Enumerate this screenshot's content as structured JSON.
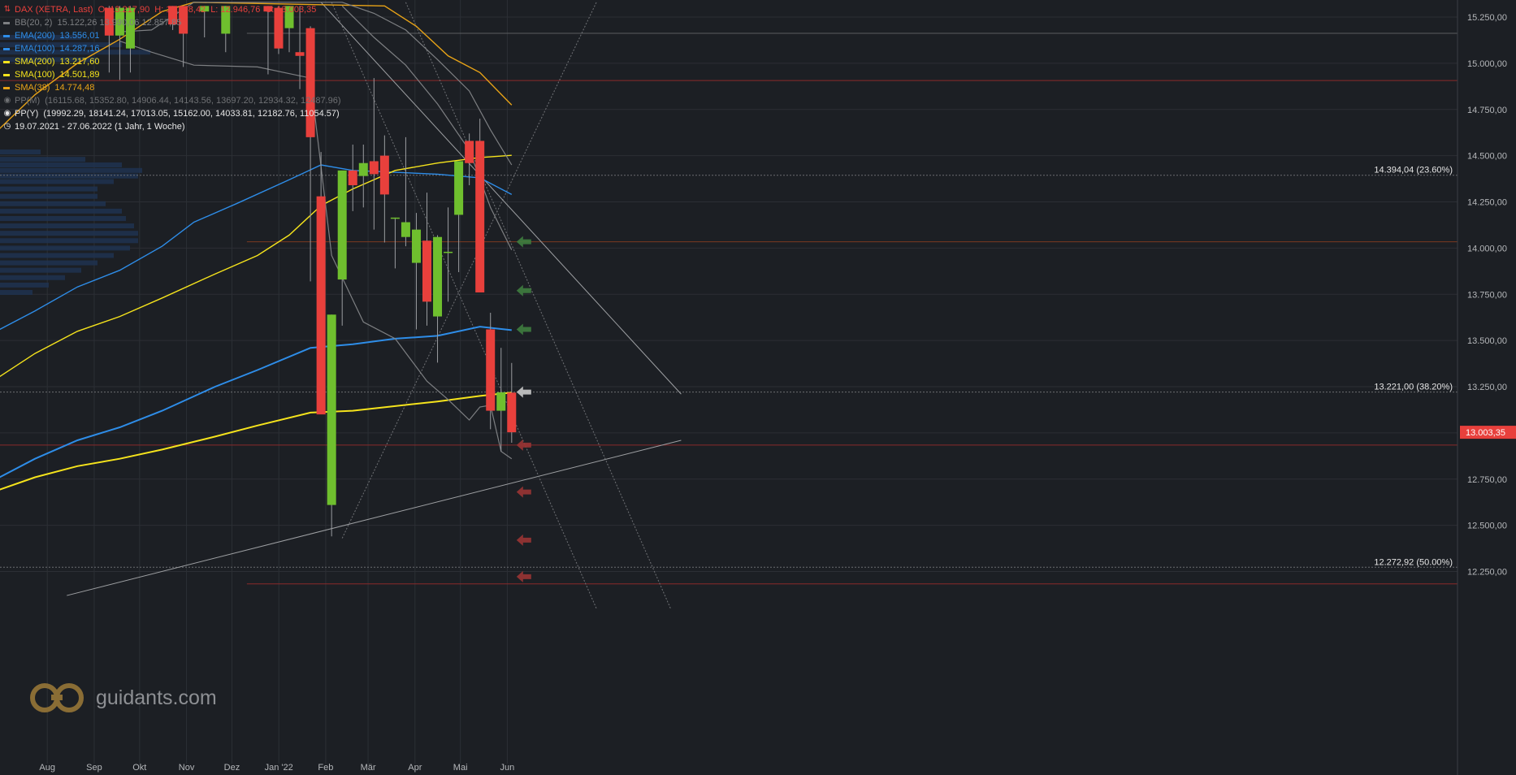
{
  "legend": {
    "main": {
      "label": "DAX (XETRA, Last)",
      "o": "O: 13.217,90",
      "h": "H: 13.378,42",
      "l": "L: 12.946,76",
      "c": "C: 13.003,35",
      "color": "#e8403c"
    },
    "indicators": [
      {
        "label": "BB(20, 2)",
        "values": "15.122,26  13.990,06  12.857,85",
        "color": "#7d7f82"
      },
      {
        "label": "EMA(200)",
        "values": "13.556,01",
        "color": "#2e8de8"
      },
      {
        "label": "EMA(100)",
        "values": "14.287,16",
        "color": "#2e8de8"
      },
      {
        "label": "SMA(200)",
        "values": "13.217,60",
        "color": "#f5e31c"
      },
      {
        "label": "SMA(100)",
        "values": "14.501,89",
        "color": "#f5e31c"
      },
      {
        "label": "SMA(38)",
        "values": "14.774,48",
        "color": "#e8a317"
      },
      {
        "label": "PP(M)",
        "values": "(16115.68, 15352.80, 14906.44, 14143.56, 13697.20, 12934.32, 12487.96)",
        "color": "#6f7174"
      },
      {
        "label": "PP(Y)",
        "values": "(19992.29, 18141.24, 17013.05, 15162.00, 14033.81, 12182.76, 11054.57)",
        "color": "#e6e6e6"
      }
    ],
    "range": "19.07.2021 - 27.06.2022   (1 Jahr, 1 Woche)"
  },
  "logo": {
    "text": "guidants.com"
  },
  "colors": {
    "up": "#6fbf2e",
    "down": "#e8403c",
    "bg": "#1c1f24",
    "grid": "#2c2f35",
    "axis": "#b5b7ba"
  },
  "chart_data": {
    "type": "candlestick",
    "period": "weekly",
    "ylim": [
      12100,
      15300
    ],
    "y_ticks": [
      "12.250,00",
      "12.500,00",
      "12.750,00",
      "13.000,00",
      "13.250,00",
      "13.500,00",
      "13.750,00",
      "14.000,00",
      "14.250,00",
      "14.500,00",
      "14.750,00",
      "15.000,00",
      "15.250,00"
    ],
    "x_ticks": [
      "Aug",
      "Sep",
      "Okt",
      "Nov",
      "Dez",
      "Jan '22",
      "Feb",
      "Mär",
      "Apr",
      "Mai",
      "Jun"
    ],
    "last_price": "13.003,35",
    "candles": [
      {
        "date": "2021-09-27",
        "o": 15300,
        "h": 15310,
        "l": 14950,
        "c": 15150
      },
      {
        "date": "2021-10-04",
        "o": 15150,
        "h": 15310,
        "l": 14910,
        "c": 15300
      },
      {
        "date": "2021-10-11",
        "o": 15080,
        "h": 15310,
        "l": 14950,
        "c": 15300
      },
      {
        "date": "2021-11-08",
        "o": 15310,
        "h": 15310,
        "l": 15180,
        "c": 15210
      },
      {
        "date": "2021-11-15",
        "o": 15310,
        "h": 15310,
        "l": 14980,
        "c": 15160
      },
      {
        "date": "2021-11-29",
        "o": 15280,
        "h": 15310,
        "l": 15140,
        "c": 15310
      },
      {
        "date": "2021-12-13",
        "o": 15160,
        "h": 15310,
        "l": 15060,
        "c": 15310
      },
      {
        "date": "2022-01-10",
        "o": 15310,
        "h": 15310,
        "l": 14940,
        "c": 15280
      },
      {
        "date": "2022-01-17",
        "o": 15300,
        "h": 15310,
        "l": 15050,
        "c": 15080
      },
      {
        "date": "2022-01-24",
        "o": 15190,
        "h": 15310,
        "l": 15060,
        "c": 15310
      },
      {
        "date": "2022-01-31",
        "o": 15060,
        "h": 15310,
        "l": 14860,
        "c": 15040
      },
      {
        "date": "2022-02-07",
        "o": 15190,
        "h": 15200,
        "l": 13820,
        "c": 14600
      },
      {
        "date": "2022-02-14",
        "o": 14280,
        "h": 14520,
        "l": 13110,
        "c": 13100
      },
      {
        "date": "2022-02-21",
        "o": 12610,
        "h": 13640,
        "l": 12440,
        "c": 13640
      },
      {
        "date": "2022-02-28",
        "o": 13830,
        "h": 14410,
        "l": 13580,
        "c": 14420
      },
      {
        "date": "2022-03-07",
        "o": 14420,
        "h": 14560,
        "l": 14200,
        "c": 14340
      },
      {
        "date": "2022-03-14",
        "o": 14390,
        "h": 14560,
        "l": 14220,
        "c": 14460
      },
      {
        "date": "2022-03-21",
        "o": 14470,
        "h": 14920,
        "l": 14100,
        "c": 14400
      },
      {
        "date": "2022-03-28",
        "o": 14500,
        "h": 14610,
        "l": 14030,
        "c": 14290
      },
      {
        "date": "2022-04-04",
        "o": 14165,
        "h": 14165,
        "l": 13890,
        "c": 14165
      },
      {
        "date": "2022-04-11",
        "o": 14060,
        "h": 14600,
        "l": 14010,
        "c": 14140
      },
      {
        "date": "2022-04-18",
        "o": 13920,
        "h": 14190,
        "l": 13560,
        "c": 14100
      },
      {
        "date": "2022-04-25",
        "o": 14040,
        "h": 14300,
        "l": 13580,
        "c": 13710
      },
      {
        "date": "2022-05-02",
        "o": 13630,
        "h": 14070,
        "l": 13380,
        "c": 14060
      },
      {
        "date": "2022-05-09",
        "o": 13980,
        "h": 14220,
        "l": 13710,
        "c": 13980
      },
      {
        "date": "2022-05-16",
        "o": 14180,
        "h": 14470,
        "l": 13870,
        "c": 14470
      },
      {
        "date": "2022-05-23",
        "o": 14580,
        "h": 14620,
        "l": 14340,
        "c": 14460
      },
      {
        "date": "2022-05-30",
        "o": 14580,
        "h": 14700,
        "l": 13770,
        "c": 13760
      },
      {
        "date": "2022-06-06",
        "o": 13560,
        "h": 13650,
        "l": 13020,
        "c": 13120
      },
      {
        "date": "2022-06-13",
        "o": 13120,
        "h": 13460,
        "l": 12900,
        "c": 13220
      },
      {
        "date": "2022-06-20",
        "o": 13217.9,
        "h": 13378.42,
        "l": 12946.76,
        "c": 13003.35
      }
    ],
    "series": [
      {
        "name": "EMA(200)",
        "color": "#2e8de8",
        "points": [
          [
            "2021-07-12",
            12740
          ],
          [
            "2021-08-09",
            12860
          ],
          [
            "2021-09-06",
            12960
          ],
          [
            "2021-10-04",
            13030
          ],
          [
            "2021-11-01",
            13120
          ],
          [
            "2021-12-06",
            13250
          ],
          [
            "2022-01-03",
            13340
          ],
          [
            "2022-02-07",
            13460
          ],
          [
            "2022-03-07",
            13480
          ],
          [
            "2022-04-04",
            13510
          ],
          [
            "2022-05-02",
            13525
          ],
          [
            "2022-05-30",
            13575
          ],
          [
            "2022-06-20",
            13556
          ]
        ]
      },
      {
        "name": "EMA(100)",
        "color": "#2e8de8",
        "points": [
          [
            "2021-07-12",
            13540
          ],
          [
            "2021-08-09",
            13660
          ],
          [
            "2021-09-06",
            13790
          ],
          [
            "2021-10-04",
            13880
          ],
          [
            "2021-11-01",
            14010
          ],
          [
            "2021-11-22",
            14140
          ],
          [
            "2021-12-20",
            14240
          ],
          [
            "2022-01-24",
            14370
          ],
          [
            "2022-02-14",
            14450
          ],
          [
            "2022-03-07",
            14420
          ],
          [
            "2022-04-04",
            14410
          ],
          [
            "2022-05-02",
            14400
          ],
          [
            "2022-05-30",
            14380
          ],
          [
            "2022-06-20",
            14290
          ]
        ]
      },
      {
        "name": "SMA(200)",
        "color": "#f5e31c",
        "points": [
          [
            "2021-07-12",
            12680
          ],
          [
            "2021-08-09",
            12760
          ],
          [
            "2021-09-06",
            12820
          ],
          [
            "2021-10-04",
            12860
          ],
          [
            "2021-11-01",
            12910
          ],
          [
            "2021-12-06",
            12980
          ],
          [
            "2022-01-03",
            13040
          ],
          [
            "2022-02-07",
            13110
          ],
          [
            "2022-03-07",
            13120
          ],
          [
            "2022-04-04",
            13145
          ],
          [
            "2022-05-02",
            13170
          ],
          [
            "2022-05-30",
            13200
          ],
          [
            "2022-06-20",
            13218
          ]
        ]
      },
      {
        "name": "SMA(100)",
        "color": "#f5e31c",
        "points": [
          [
            "2021-07-12",
            13280
          ],
          [
            "2021-08-09",
            13430
          ],
          [
            "2021-09-06",
            13550
          ],
          [
            "2021-10-04",
            13630
          ],
          [
            "2021-11-01",
            13730
          ],
          [
            "2021-12-06",
            13860
          ],
          [
            "2022-01-03",
            13960
          ],
          [
            "2022-01-24",
            14070
          ],
          [
            "2022-02-14",
            14230
          ],
          [
            "2022-03-07",
            14320
          ],
          [
            "2022-04-04",
            14420
          ],
          [
            "2022-05-02",
            14460
          ],
          [
            "2022-05-30",
            14490
          ],
          [
            "2022-06-20",
            14502
          ]
        ]
      },
      {
        "name": "SMA(38)",
        "color": "#e8a317",
        "points": [
          [
            "2021-07-12",
            14610
          ],
          [
            "2021-08-09",
            14830
          ],
          [
            "2021-09-06",
            15000
          ],
          [
            "2021-10-04",
            15130
          ],
          [
            "2021-11-01",
            15280
          ],
          [
            "2021-11-22",
            15330
          ],
          [
            "2022-03-28",
            15310
          ],
          [
            "2022-04-18",
            15200
          ],
          [
            "2022-05-09",
            15040
          ],
          [
            "2022-05-30",
            14950
          ],
          [
            "2022-06-20",
            14774
          ]
        ]
      },
      {
        "name": "BB upper",
        "color": "#7d7f82",
        "points": [
          [
            "2021-10-04",
            15170
          ],
          [
            "2021-10-25",
            15180
          ],
          [
            "2021-11-22",
            15330
          ],
          [
            "2022-02-28",
            15330
          ],
          [
            "2022-03-21",
            15270
          ],
          [
            "2022-04-11",
            15180
          ],
          [
            "2022-05-02",
            15020
          ],
          [
            "2022-05-23",
            14850
          ],
          [
            "2022-06-06",
            14640
          ],
          [
            "2022-06-20",
            14450
          ]
        ]
      },
      {
        "name": "BB middle",
        "color": "#7d7f82",
        "points": [
          [
            "2022-02-28",
            15310
          ],
          [
            "2022-03-21",
            15140
          ],
          [
            "2022-04-11",
            14990
          ],
          [
            "2022-05-02",
            14780
          ],
          [
            "2022-05-23",
            14530
          ],
          [
            "2022-06-06",
            14220
          ],
          [
            "2022-06-20",
            13990
          ]
        ]
      },
      {
        "name": "BB lower",
        "color": "#7d7f82",
        "points": [
          [
            "2021-10-04",
            15120
          ],
          [
            "2021-10-25",
            15060
          ],
          [
            "2021-11-22",
            14990
          ],
          [
            "2022-01-03",
            14980
          ],
          [
            "2022-02-07",
            14920
          ],
          [
            "2022-02-21",
            13960
          ],
          [
            "2022-03-14",
            13600
          ],
          [
            "2022-04-04",
            13510
          ],
          [
            "2022-04-25",
            13280
          ],
          [
            "2022-05-09",
            13180
          ],
          [
            "2022-05-23",
            13070
          ],
          [
            "2022-05-30",
            13140
          ],
          [
            "2022-06-06",
            13150
          ],
          [
            "2022-06-13",
            12900
          ],
          [
            "2022-06-20",
            12860
          ]
        ]
      }
    ],
    "trend_lines": [
      {
        "from": [
          "2021-08-30",
          12120
        ],
        "to": [
          "2022-10-10",
          12960
        ],
        "color": "#9ea0a3"
      },
      {
        "from": [
          "2022-02-28",
          12430
        ],
        "to": [
          "2022-08-15",
          15330
        ],
        "color": "#707276",
        "dotted": true
      },
      {
        "from": [
          "2022-02-14",
          15330
        ],
        "to": [
          "2022-10-10",
          13210
        ],
        "color": "#9ea0a3"
      },
      {
        "from": [
          "2022-02-21",
          15330
        ],
        "to": [
          "2022-08-15",
          12050
        ],
        "color": "#707276",
        "dotted": true
      },
      {
        "from": [
          "2022-04-11",
          15330
        ],
        "to": [
          "2022-10-03",
          12050
        ],
        "color": "#707276",
        "dotted": true
      }
    ],
    "fibonacci": [
      {
        "label": "14.394,04 (23.60%)",
        "value": 14394.04
      },
      {
        "label": "13.221,00 (38.20%)",
        "value": 13221.0
      },
      {
        "label": "12.272,92 (50.00%)",
        "value": 12272.92
      }
    ],
    "pivot_lines": [
      {
        "value": 15162.0,
        "color": "#5c5e61",
        "from": "2021-12-27"
      },
      {
        "value": 14906.44,
        "color": "#8a2a2a",
        "from": "2021-07-12"
      },
      {
        "value": 14033.81,
        "color": "#7a3a20",
        "from": "2021-12-27"
      },
      {
        "value": 12934.32,
        "color": "#8a2a2a",
        "from": "2021-07-12"
      },
      {
        "value": 12182.76,
        "color": "#8a2a2a",
        "from": "2021-12-27"
      }
    ],
    "pivot_arrows": [
      {
        "value": 14033.81,
        "color": "#3f7d3f"
      },
      {
        "value": 13770.0,
        "color": "#3f7d3f"
      },
      {
        "value": 13560.0,
        "color": "#3f7d3f"
      },
      {
        "value": 13221.0,
        "color": "#c9c9c9"
      },
      {
        "value": 12934.32,
        "color": "#9a3434"
      },
      {
        "value": 12680.0,
        "color": "#9a3434"
      },
      {
        "value": 12420.0,
        "color": "#9a3434"
      },
      {
        "value": 12222.0,
        "color": "#9a3434"
      }
    ],
    "volume_profile": [
      [
        14520,
        50
      ],
      [
        14480,
        105
      ],
      [
        14450,
        150
      ],
      [
        14420,
        175
      ],
      [
        14390,
        170
      ],
      [
        14360,
        140
      ],
      [
        14320,
        120
      ],
      [
        14280,
        120
      ],
      [
        14240,
        130
      ],
      [
        14200,
        150
      ],
      [
        14160,
        155
      ],
      [
        14120,
        165
      ],
      [
        14080,
        170
      ],
      [
        14040,
        170
      ],
      [
        14000,
        160
      ],
      [
        13960,
        140
      ],
      [
        13920,
        120
      ],
      [
        13880,
        100
      ],
      [
        13840,
        80
      ],
      [
        13800,
        60
      ],
      [
        13760,
        40
      ],
      [
        15140,
        100
      ],
      [
        15100,
        150
      ],
      [
        15060,
        185
      ],
      [
        15020,
        120
      ]
    ]
  }
}
